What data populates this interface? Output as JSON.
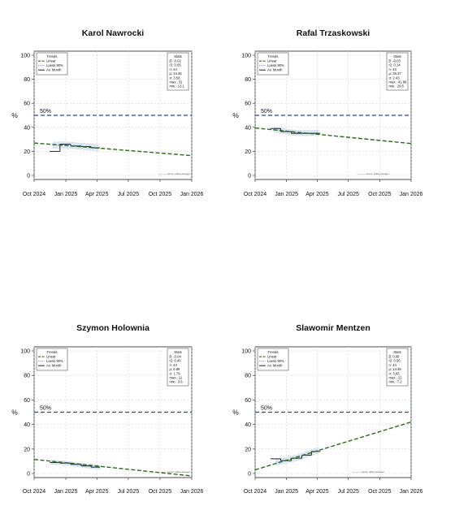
{
  "chart_data": [
    {
      "type": "line",
      "title": "Karol Nawrocki",
      "ylabel": "%",
      "ylim": [
        0,
        100
      ],
      "yticks": [
        "0",
        "20",
        "40",
        "60",
        "80",
        "100"
      ],
      "xticks": [
        "Oct 2024",
        "Jan 2025",
        "Apr 2025",
        "Jul 2025",
        "Oct 2025",
        "Jan 2026"
      ],
      "reference_line": {
        "value": 50,
        "label": "50%",
        "color": "#2f4f7f"
      },
      "legend": {
        "title": "Trends",
        "items": [
          "Linear",
          "Loess 90%",
          "Av. Month"
        ]
      },
      "stats": {
        "title": "Stats",
        "lines": [
          "β: -0.02",
          "r2: 0.05",
          "n: 44",
          "μ: 24.35",
          "σ: 3.58",
          "max.: 31",
          "min.: 13.1"
        ]
      },
      "linear_trend": [
        {
          "date": "2024-10-01",
          "value": 27
        },
        {
          "date": "2026-01-01",
          "value": 16.5
        }
      ],
      "loess": [
        {
          "date": "2024-11-25",
          "value": 25
        },
        {
          "date": "2024-12-15",
          "value": 25.5
        },
        {
          "date": "2025-01-05",
          "value": 25.3
        },
        {
          "date": "2025-02-01",
          "value": 24.6
        },
        {
          "date": "2025-03-05",
          "value": 23.8
        },
        {
          "date": "2025-04-05",
          "value": 23
        }
      ],
      "loess_band_width": 2.6,
      "monthly_avg": [
        {
          "from": "2024-11-15",
          "to": "2024-12-15",
          "value": 20
        },
        {
          "from": "2024-12-15",
          "to": "2025-01-15",
          "value": 26
        },
        {
          "from": "2025-01-15",
          "to": "2025-02-15",
          "value": 24.5
        },
        {
          "from": "2025-02-15",
          "to": "2025-03-15",
          "value": 24
        },
        {
          "from": "2025-03-15",
          "to": "2025-04-10",
          "value": 23
        }
      ],
      "footnote": {
        "date": "2025-10-15",
        "value": 1.2,
        "text": "source: polling averages"
      },
      "colors": {
        "linear": "#2e6b1e",
        "loess": "#88a8d8",
        "monthly": "#222222"
      }
    },
    {
      "type": "line",
      "title": "Rafal Trzaskowski",
      "ylabel": "%",
      "ylim": [
        0,
        100
      ],
      "yticks": [
        "0",
        "20",
        "40",
        "60",
        "80",
        "100"
      ],
      "xticks": [
        "Oct 2024",
        "Jan 2025",
        "Apr 2025",
        "Jul 2025",
        "Oct 2025",
        "Jan 2026"
      ],
      "reference_line": {
        "value": 50,
        "label": "50%",
        "color": "#2f4f7f"
      },
      "legend": {
        "title": "Trends",
        "items": [
          "Linear",
          "Loess 90%",
          "Av. Month"
        ]
      },
      "stats": {
        "title": "Stats",
        "lines": [
          "β: -0.03",
          "r2: 0.14",
          "n: 44",
          "μ: 35.37",
          "σ: 2.43",
          "max.: 41.96",
          "min.: 29.6"
        ]
      },
      "linear_trend": [
        {
          "date": "2024-10-01",
          "value": 39.5
        },
        {
          "date": "2026-01-01",
          "value": 26.5
        }
      ],
      "loess": [
        {
          "date": "2024-11-25",
          "value": 38.2
        },
        {
          "date": "2024-12-20",
          "value": 37
        },
        {
          "date": "2025-01-15",
          "value": 35.8
        },
        {
          "date": "2025-02-15",
          "value": 35.2
        },
        {
          "date": "2025-03-15",
          "value": 35.3
        },
        {
          "date": "2025-04-05",
          "value": 35.6
        }
      ],
      "loess_band_width": 2.2,
      "monthly_avg": [
        {
          "from": "2024-11-15",
          "to": "2024-12-15",
          "value": 39
        },
        {
          "from": "2024-12-15",
          "to": "2025-01-15",
          "value": 36.5
        },
        {
          "from": "2025-01-15",
          "to": "2025-02-15",
          "value": 35
        },
        {
          "from": "2025-02-15",
          "to": "2025-03-15",
          "value": 35
        },
        {
          "from": "2025-03-15",
          "to": "2025-04-10",
          "value": 35
        }
      ],
      "footnote": {
        "date": "2025-08-15",
        "value": 1.2,
        "text": "source: polling averages"
      },
      "colors": {
        "linear": "#2e6b1e",
        "loess": "#88a8d8",
        "monthly": "#222222"
      }
    },
    {
      "type": "line",
      "title": "Szymon Holownia",
      "ylabel": "%",
      "ylim": [
        0,
        100
      ],
      "yticks": [
        "0",
        "20",
        "40",
        "60",
        "80",
        "100"
      ],
      "xticks": [
        "Oct 2024",
        "Jan 2025",
        "Apr 2025",
        "Jul 2025",
        "Oct 2025",
        "Jan 2026"
      ],
      "reference_line": {
        "value": 50,
        "label": "50%",
        "color": "#2f4f7f"
      },
      "legend": {
        "title": "Trends",
        "items": [
          "Linear",
          "Loess 90%",
          "Av. Month"
        ]
      },
      "stats": {
        "title": "Stats",
        "lines": [
          "β: -0.04",
          "r2: 0.45",
          "n: 44",
          "μ: 6.99",
          "σ: 1.79",
          "max.: 11",
          "min.: 3.6"
        ]
      },
      "linear_trend": [
        {
          "date": "2024-10-01",
          "value": 11.5
        },
        {
          "date": "2026-01-01",
          "value": -2
        }
      ],
      "loess": [
        {
          "date": "2024-11-20",
          "value": 9.2
        },
        {
          "date": "2024-12-20",
          "value": 8.8
        },
        {
          "date": "2025-01-20",
          "value": 7.8
        },
        {
          "date": "2025-02-20",
          "value": 6.5
        },
        {
          "date": "2025-03-20",
          "value": 5.5
        },
        {
          "date": "2025-04-10",
          "value": 5
        }
      ],
      "loess_band_width": 1.6,
      "monthly_avg": [
        {
          "from": "2024-11-15",
          "to": "2024-12-15",
          "value": 9
        },
        {
          "from": "2024-12-15",
          "to": "2025-01-15",
          "value": 8.5
        },
        {
          "from": "2025-01-15",
          "to": "2025-02-15",
          "value": 7.5
        },
        {
          "from": "2025-02-15",
          "to": "2025-03-15",
          "value": 6.2
        },
        {
          "from": "2025-03-15",
          "to": "2025-04-10",
          "value": 5.2
        }
      ],
      "footnote": {
        "date": "2025-10-15",
        "value": 1.2,
        "text": "source: polling averages"
      },
      "colors": {
        "linear": "#2e6b1e",
        "loess": "#88a8d8",
        "monthly": "#222222"
      }
    },
    {
      "type": "line",
      "title": "Slawomir Mentzen",
      "ylabel": "%",
      "ylim": [
        0,
        100
      ],
      "yticks": [
        "0",
        "20",
        "40",
        "60",
        "80",
        "100"
      ],
      "xticks": [
        "Oct 2024",
        "Jan 2025",
        "Apr 2025",
        "Jul 2025",
        "Oct 2025",
        "Jan 2026"
      ],
      "reference_line": {
        "value": 50,
        "label": "50%",
        "color": "#2f4f7f"
      },
      "legend": {
        "title": "Trends",
        "items": [
          "Linear",
          "Loess 90%",
          "Av. Month"
        ]
      },
      "stats": {
        "title": "Stats",
        "lines": [
          "β: 0.08",
          "r2: 0.56",
          "n: 44",
          "μ: 14.36",
          "σ: 3.65",
          "max.: 22",
          "min.: 7.2"
        ]
      },
      "linear_trend": [
        {
          "date": "2024-10-01",
          "value": 3
        },
        {
          "date": "2026-01-01",
          "value": 42
        }
      ],
      "loess": [
        {
          "date": "2024-12-01",
          "value": 9
        },
        {
          "date": "2024-12-25",
          "value": 10.5
        },
        {
          "date": "2025-01-20",
          "value": 12
        },
        {
          "date": "2025-02-15",
          "value": 14
        },
        {
          "date": "2025-03-10",
          "value": 16.5
        },
        {
          "date": "2025-04-05",
          "value": 19
        }
      ],
      "loess_band_width": 2.4,
      "monthly_avg": [
        {
          "from": "2024-11-15",
          "to": "2024-12-15",
          "value": 12
        },
        {
          "from": "2024-12-15",
          "to": "2025-01-15",
          "value": 10.5
        },
        {
          "from": "2025-01-15",
          "to": "2025-02-15",
          "value": 12.5
        },
        {
          "from": "2025-02-15",
          "to": "2025-03-15",
          "value": 15
        },
        {
          "from": "2025-03-15",
          "to": "2025-04-10",
          "value": 18
        }
      ],
      "footnote": {
        "date": "2025-08-01",
        "value": 1.2,
        "text": "source: polling averages"
      },
      "colors": {
        "linear": "#2e6b1e",
        "loess": "#88a8d8",
        "monthly": "#222222"
      }
    }
  ]
}
